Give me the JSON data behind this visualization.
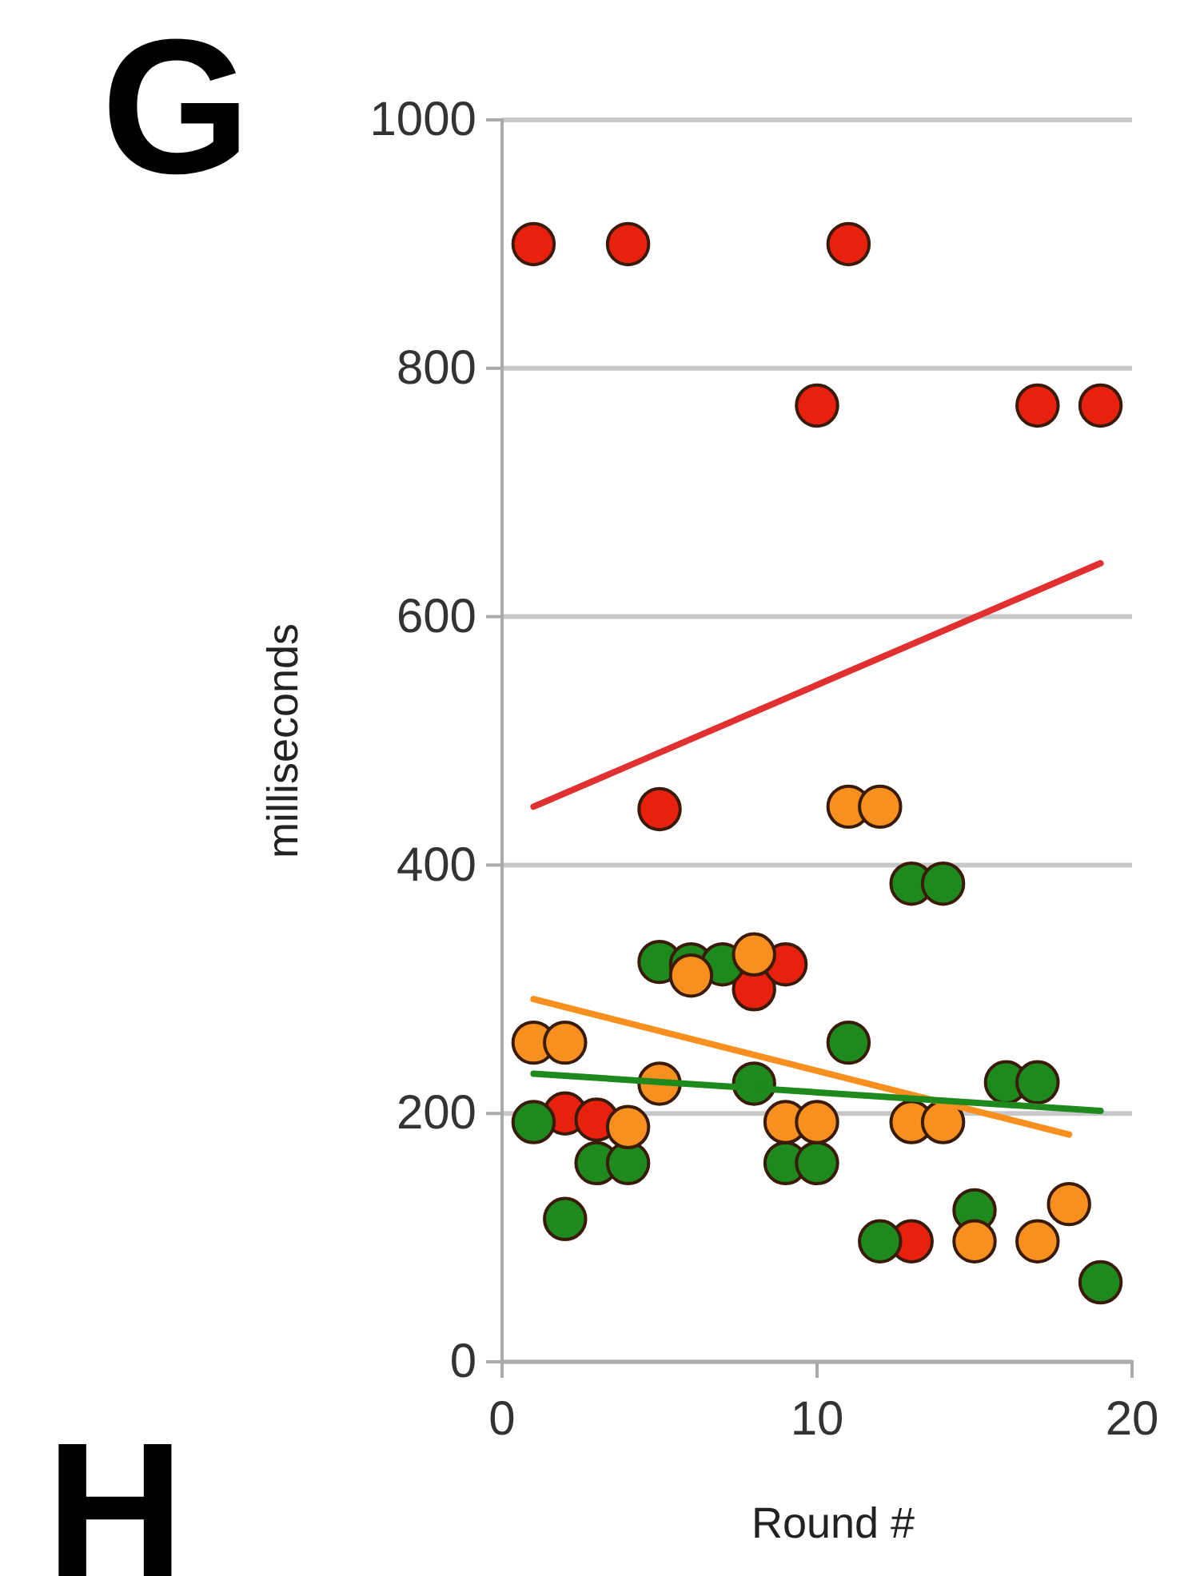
{
  "chart_data": {
    "type": "scatter",
    "xlabel": "Round #",
    "ylabel": "milliseconds",
    "annotations": [
      "G",
      "H"
    ],
    "xlim": [
      0,
      20
    ],
    "xticks": [
      0,
      10,
      20
    ],
    "ylim": [
      0,
      1000
    ],
    "yticks": [
      0,
      200,
      400,
      600,
      800,
      1000
    ],
    "grid": "y",
    "marker": "circle",
    "series": [
      {
        "color": "#e8200e",
        "x": [
          1,
          4,
          11,
          10,
          17,
          19,
          5,
          2,
          3,
          8,
          9,
          13
        ],
        "values": [
          900,
          900,
          900,
          770,
          770,
          770,
          445,
          200,
          195,
          300,
          320,
          97
        ]
      },
      {
        "color": "#1e8a1e",
        "x": [
          1,
          2,
          3,
          4,
          5,
          6,
          7,
          8,
          9,
          10,
          11,
          12,
          13,
          14,
          15,
          16,
          17,
          19
        ],
        "values": [
          193,
          115,
          160,
          160,
          322,
          320,
          320,
          224,
          160,
          160,
          257,
          97,
          385,
          385,
          122,
          225,
          225,
          64
        ]
      },
      {
        "color": "#f7901e",
        "x": [
          1,
          2,
          4,
          5,
          6,
          8,
          9,
          10,
          11,
          12,
          13,
          14,
          15,
          17,
          18
        ],
        "values": [
          257,
          257,
          189,
          224,
          311,
          328,
          193,
          193,
          447,
          447,
          193,
          193,
          97,
          97,
          127
        ]
      },
      {
        "type": "line",
        "marker": "none",
        "color": "#e03030",
        "x": [
          1,
          19
        ],
        "values": [
          447,
          643
        ]
      },
      {
        "type": "line",
        "marker": "none",
        "color": "#f7901e",
        "x": [
          1,
          18
        ],
        "values": [
          292,
          183
        ]
      },
      {
        "type": "line",
        "marker": "none",
        "color": "#1e8a1e",
        "x": [
          1,
          19
        ],
        "values": [
          232,
          202
        ]
      }
    ]
  }
}
